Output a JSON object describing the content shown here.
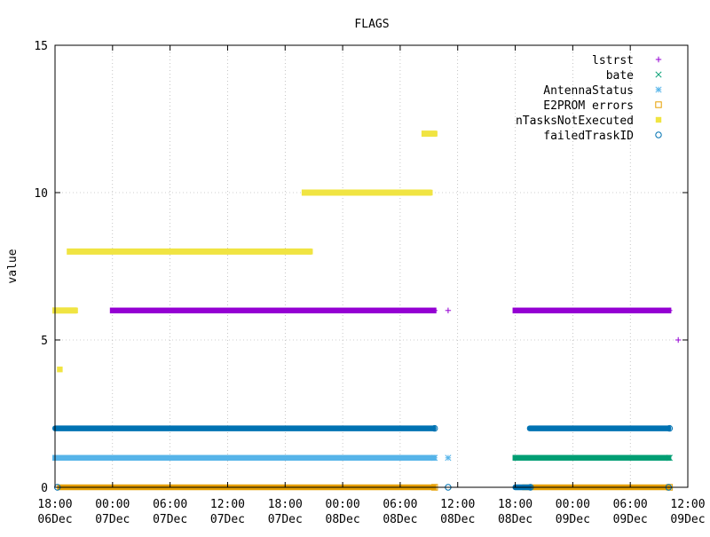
{
  "chart_data": {
    "type": "scatter",
    "title": "FLAGS",
    "xlabel": "",
    "ylabel": "value",
    "xlim": [
      "2020-12-06T18:00",
      "2020-12-09T12:00"
    ],
    "ylim": [
      0,
      15
    ],
    "grid": true,
    "legend_position": "top-right",
    "x_tick_labels": [
      [
        "18:00",
        "06Dec"
      ],
      [
        "00:00",
        "07Dec"
      ],
      [
        "06:00",
        "07Dec"
      ],
      [
        "12:00",
        "07Dec"
      ],
      [
        "18:00",
        "07Dec"
      ],
      [
        "00:00",
        "08Dec"
      ],
      [
        "06:00",
        "08Dec"
      ],
      [
        "12:00",
        "08Dec"
      ],
      [
        "18:00",
        "08Dec"
      ],
      [
        "00:00",
        "09Dec"
      ],
      [
        "06:00",
        "09Dec"
      ],
      [
        "12:00",
        "09Dec"
      ]
    ],
    "y_ticks": [
      0,
      5,
      10,
      15
    ],
    "series": [
      {
        "name": "lstrst",
        "marker": "plus",
        "color": "#9400d3",
        "segments": [
          {
            "start": "2020-12-07T00:00",
            "end": "2020-12-08T09:30",
            "y": 6
          },
          {
            "start": "2020-12-08T18:00",
            "end": "2020-12-09T10:00",
            "y": 6
          }
        ],
        "points": [
          {
            "x": "2020-12-08T11:00",
            "y": 6
          },
          {
            "x": "2020-12-09T11:00",
            "y": 5
          }
        ]
      },
      {
        "name": "bate",
        "marker": "cross",
        "color": "#009e73",
        "segments": [
          {
            "start": "2020-12-08T18:00",
            "end": "2020-12-09T10:00",
            "y": 1
          }
        ],
        "points": []
      },
      {
        "name": "AntennaStatus",
        "marker": "asterisk",
        "color": "#56b4e9",
        "segments": [
          {
            "start": "2020-12-06T18:00",
            "end": "2020-12-08T09:30",
            "y": 1
          }
        ],
        "points": [
          {
            "x": "2020-12-08T11:00",
            "y": 1
          }
        ]
      },
      {
        "name": "E2PROM errors",
        "marker": "open-square",
        "color": "#e69f00",
        "segments": [
          {
            "start": "2020-12-06T18:30",
            "end": "2020-12-08T09:30",
            "y": 0
          },
          {
            "start": "2020-12-08T19:00",
            "end": "2020-12-09T10:00",
            "y": 0
          }
        ],
        "points": []
      },
      {
        "name": "nTasksNotExecuted",
        "marker": "filled-square",
        "color": "#f0e442",
        "segments": [
          {
            "start": "2020-12-06T18:00",
            "end": "2020-12-06T20:00",
            "y": 6
          },
          {
            "start": "2020-12-06T19:30",
            "end": "2020-12-07T20:30",
            "y": 8
          },
          {
            "start": "2020-12-07T20:00",
            "end": "2020-12-08T09:00",
            "y": 10
          },
          {
            "start": "2020-12-08T08:30",
            "end": "2020-12-08T09:30",
            "y": 12
          }
        ],
        "points": [
          {
            "x": "2020-12-06T18:30",
            "y": 4
          }
        ]
      },
      {
        "name": "failedTraskID",
        "marker": "open-circle",
        "color": "#0072b2",
        "segments": [
          {
            "start": "2020-12-06T18:00",
            "end": "2020-12-08T09:30",
            "y": 2
          },
          {
            "start": "2020-12-08T19:30",
            "end": "2020-12-09T10:00",
            "y": 2
          },
          {
            "start": "2020-12-08T18:00",
            "end": "2020-12-08T19:30",
            "y": 0
          }
        ],
        "points": [
          {
            "x": "2020-12-06T18:15",
            "y": 0
          },
          {
            "x": "2020-12-08T11:00",
            "y": 0
          },
          {
            "x": "2020-12-09T10:00",
            "y": 0
          }
        ]
      }
    ]
  }
}
